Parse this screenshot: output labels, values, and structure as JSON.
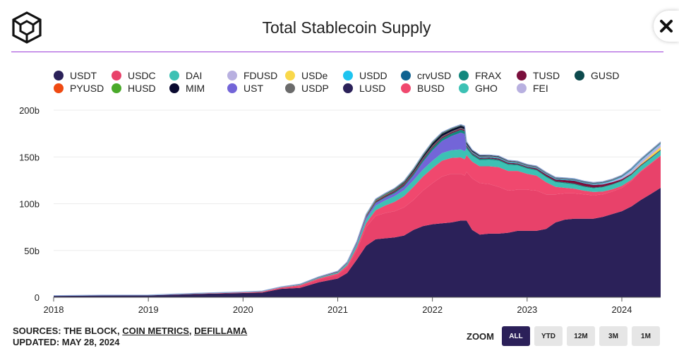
{
  "header": {
    "title": "Total Stablecoin Supply"
  },
  "icons": {
    "logo": "the-block-cube-logo-icon",
    "close": "close-icon"
  },
  "legend": [
    {
      "name": "USDT",
      "color": "#2b2159"
    },
    {
      "name": "USDC",
      "color": "#e8426a"
    },
    {
      "name": "DAI",
      "color": "#3cc1b4"
    },
    {
      "name": "FDUSD",
      "color": "#b8b0e0"
    },
    {
      "name": "USDe",
      "color": "#f9d84a"
    },
    {
      "name": "USDD",
      "color": "#1ec4f0"
    },
    {
      "name": "crvUSD",
      "color": "#0f6291"
    },
    {
      "name": "FRAX",
      "color": "#13887e"
    },
    {
      "name": "TUSD",
      "color": "#7a0f3c"
    },
    {
      "name": "GUSD",
      "color": "#0d4a4d"
    },
    {
      "name": "PYUSD",
      "color": "#ef4a12"
    },
    {
      "name": "HUSD",
      "color": "#4aaa2a"
    },
    {
      "name": "MIM",
      "color": "#0a0a30"
    },
    {
      "name": "UST",
      "color": "#7365d8"
    },
    {
      "name": "USDP",
      "color": "#6b6b6b"
    },
    {
      "name": "LUSD",
      "color": "#2b2159"
    },
    {
      "name": "BUSD",
      "color": "#f0486e"
    },
    {
      "name": "GHO",
      "color": "#3cc1b4"
    },
    {
      "name": "FEI",
      "color": "#b8b0e0"
    }
  ],
  "chart_data": {
    "type": "area",
    "stacked": true,
    "title": "Total Stablecoin Supply",
    "ylabel": "",
    "xlabel": "",
    "ylim": [
      0,
      200
    ],
    "xlim": [
      2018.0,
      2024.41
    ],
    "grid": true,
    "y_ticks": [
      "0",
      "50b",
      "100b",
      "150b",
      "200b"
    ],
    "y_tick_values": [
      0,
      50,
      100,
      150,
      200
    ],
    "x_ticks": [
      "2018",
      "2019",
      "2020",
      "2021",
      "2022",
      "2023",
      "2024"
    ],
    "x_tick_values": [
      2018,
      2019,
      2020,
      2021,
      2022,
      2023,
      2024
    ],
    "x": [
      2018.0,
      2018.5,
      2019.0,
      2019.5,
      2020.0,
      2020.2,
      2020.4,
      2020.6,
      2020.8,
      2021.0,
      2021.1,
      2021.2,
      2021.3,
      2021.4,
      2021.5,
      2021.6,
      2021.7,
      2021.8,
      2021.9,
      2022.0,
      2022.1,
      2022.2,
      2022.3,
      2022.34,
      2022.36,
      2022.42,
      2022.5,
      2022.6,
      2022.7,
      2022.8,
      2022.9,
      2023.0,
      2023.1,
      2023.2,
      2023.3,
      2023.4,
      2023.5,
      2023.6,
      2023.7,
      2023.8,
      2023.9,
      2024.0,
      2024.1,
      2024.2,
      2024.3,
      2024.41
    ],
    "series": [
      {
        "name": "USDT",
        "values": [
          1.5,
          2.0,
          2.0,
          3.5,
          4.5,
          5.0,
          9.0,
          10.0,
          16.0,
          20.0,
          26.0,
          40.0,
          55.0,
          62.0,
          63.0,
          64.0,
          66.0,
          72.0,
          76.0,
          78.0,
          79.0,
          80.0,
          82.0,
          82.0,
          82.0,
          72.0,
          67.0,
          68.0,
          68.0,
          69.0,
          71.0,
          71.0,
          71.0,
          73.0,
          80.0,
          83.0,
          84.0,
          84.0,
          84.0,
          86.0,
          89.0,
          92.0,
          97.0,
          104.0,
          110.0,
          117.0
        ]
      },
      {
        "name": "USDC",
        "values": [
          0.0,
          0.0,
          0.0,
          0.3,
          0.5,
          0.7,
          1.0,
          2.0,
          3.0,
          4.0,
          6.0,
          10.0,
          20.0,
          25.0,
          27.0,
          28.0,
          30.0,
          32.0,
          38.0,
          44.0,
          50.0,
          52.0,
          50.0,
          48.0,
          52.0,
          55.0,
          55.0,
          53.0,
          50.0,
          45.0,
          44.0,
          44.0,
          43.0,
          37.0,
          30.0,
          28.0,
          27.0,
          26.0,
          25.0,
          24.0,
          24.0,
          25.0,
          27.0,
          30.0,
          32.0,
          34.0
        ]
      },
      {
        "name": "BUSD",
        "values": [
          0.0,
          0.0,
          0.0,
          0.0,
          0.2,
          0.3,
          0.5,
          0.8,
          1.2,
          1.5,
          2.0,
          3.0,
          4.0,
          6.0,
          8.0,
          10.0,
          12.0,
          14.0,
          15.0,
          16.0,
          17.0,
          17.0,
          17.5,
          17.5,
          18.0,
          18.0,
          18.0,
          19.0,
          21.0,
          21.0,
          20.0,
          17.0,
          16.0,
          13.0,
          8.0,
          6.0,
          5.0,
          4.0,
          3.5,
          3.0,
          2.5,
          2.0,
          1.5,
          1.0,
          0.8,
          0.6
        ]
      },
      {
        "name": "DAI",
        "values": [
          0.1,
          0.2,
          0.2,
          0.3,
          0.3,
          0.3,
          0.3,
          0.6,
          0.9,
          1.2,
          2.0,
          3.0,
          4.0,
          5.0,
          5.5,
          6.0,
          6.5,
          7.0,
          7.5,
          8.0,
          8.0,
          8.2,
          8.5,
          8.5,
          7.0,
          6.5,
          6.5,
          7.0,
          7.0,
          6.5,
          6.0,
          5.5,
          5.5,
          5.5,
          5.0,
          4.8,
          4.5,
          4.0,
          4.0,
          4.5,
          4.8,
          5.0,
          5.0,
          5.0,
          5.0,
          5.0
        ]
      },
      {
        "name": "UST",
        "values": [
          0,
          0,
          0,
          0,
          0,
          0,
          0,
          0,
          0,
          0.1,
          0.3,
          1.0,
          2.0,
          2.5,
          2.7,
          3.0,
          3.5,
          5.0,
          8.0,
          11.0,
          13.0,
          15.0,
          18.0,
          18.5,
          0,
          0,
          0,
          0,
          0,
          0,
          0,
          0,
          0,
          0,
          0,
          0,
          0,
          0,
          0,
          0,
          0,
          0,
          0,
          0,
          0,
          0
        ]
      },
      {
        "name": "FRAX",
        "values": [
          0,
          0,
          0,
          0,
          0,
          0,
          0,
          0,
          0,
          0,
          0.1,
          0.3,
          0.5,
          0.8,
          1.0,
          1.2,
          1.4,
          1.8,
          2.2,
          2.7,
          2.8,
          2.9,
          3.0,
          3.0,
          2.2,
          1.6,
          1.4,
          1.3,
          1.2,
          1.1,
          1.1,
          1.1,
          1.0,
          1.0,
          1.0,
          1.0,
          1.0,
          0.9,
          0.8,
          0.7,
          0.7,
          0.7,
          0.7,
          0.7,
          0.7,
          0.7
        ]
      },
      {
        "name": "TUSD",
        "values": [
          0.1,
          0.1,
          0.2,
          0.2,
          0.2,
          0.3,
          0.3,
          0.4,
          0.4,
          0.5,
          0.5,
          0.8,
          1.0,
          1.2,
          1.3,
          1.3,
          1.4,
          1.3,
          1.3,
          1.3,
          1.2,
          1.2,
          1.2,
          1.2,
          1.2,
          1.1,
          1.1,
          1.1,
          1.2,
          1.2,
          1.0,
          1.0,
          1.3,
          1.8,
          2.0,
          2.5,
          3.0,
          3.0,
          2.8,
          2.5,
          2.0,
          1.5,
          1.0,
          0.8,
          0.6,
          0.5
        ]
      },
      {
        "name": "USDe",
        "values": [
          0,
          0,
          0,
          0,
          0,
          0,
          0,
          0,
          0,
          0,
          0,
          0,
          0,
          0,
          0,
          0,
          0,
          0,
          0,
          0,
          0,
          0,
          0,
          0,
          0,
          0,
          0,
          0,
          0,
          0,
          0,
          0,
          0,
          0,
          0,
          0,
          0,
          0,
          0,
          0,
          0,
          0,
          0.3,
          1.0,
          2.0,
          2.8
        ]
      },
      {
        "name": "FDUSD",
        "values": [
          0,
          0,
          0,
          0,
          0,
          0,
          0,
          0,
          0,
          0,
          0,
          0,
          0,
          0,
          0,
          0,
          0,
          0,
          0,
          0,
          0,
          0,
          0,
          0,
          0,
          0,
          0,
          0,
          0,
          0,
          0,
          0,
          0,
          0,
          0,
          0,
          0,
          0,
          0.2,
          0.5,
          1.0,
          2.0,
          3.0,
          3.0,
          3.0,
          3.0
        ]
      },
      {
        "name": "USDD",
        "values": [
          0,
          0,
          0,
          0,
          0,
          0,
          0,
          0,
          0,
          0,
          0,
          0,
          0,
          0,
          0,
          0,
          0,
          0,
          0,
          0,
          0,
          0,
          0,
          0,
          0.4,
          0.6,
          0.7,
          0.7,
          0.7,
          0.7,
          0.7,
          0.7,
          0.7,
          0.7,
          0.7,
          0.7,
          0.7,
          0.7,
          0.7,
          0.7,
          0.7,
          0.7,
          0.7,
          0.7,
          0.7,
          0.7
        ]
      },
      {
        "name": "USDP",
        "values": [
          0,
          0,
          0,
          0,
          0,
          0,
          0,
          0,
          0.1,
          0.2,
          0.3,
          0.4,
          0.5,
          0.6,
          0.6,
          0.7,
          0.8,
          0.9,
          0.9,
          1.0,
          1.0,
          1.0,
          1.0,
          1.0,
          1.0,
          1.0,
          1.0,
          1.0,
          1.0,
          1.0,
          0.9,
          0.9,
          0.9,
          0.8,
          0.7,
          0.6,
          0.5,
          0.5,
          0.5,
          0.5,
          0.4,
          0.4,
          0.4,
          0.4,
          0.4,
          0.4
        ]
      },
      {
        "name": "MIM",
        "values": [
          0,
          0,
          0,
          0,
          0,
          0,
          0,
          0,
          0,
          0,
          0,
          0,
          0,
          0,
          0.1,
          0.3,
          0.8,
          1.5,
          2.0,
          2.5,
          2.5,
          2.2,
          2.0,
          2.0,
          1.5,
          1.0,
          0.8,
          0.5,
          0.5,
          0.4,
          0.3,
          0.3,
          0.3,
          0.3,
          0.2,
          0.2,
          0.2,
          0.2,
          0.2,
          0.2,
          0.2,
          0.2,
          0.2,
          0.2,
          0.2,
          0.2
        ]
      },
      {
        "name": "crvUSD",
        "values": [
          0,
          0,
          0,
          0,
          0,
          0,
          0,
          0,
          0,
          0,
          0,
          0,
          0,
          0,
          0,
          0,
          0,
          0,
          0,
          0,
          0,
          0,
          0,
          0,
          0,
          0,
          0,
          0,
          0,
          0,
          0,
          0,
          0,
          0,
          0.1,
          0.2,
          0.3,
          0.3,
          0.3,
          0.3,
          0.3,
          0.3,
          0.3,
          0.3,
          0.3,
          0.3
        ]
      },
      {
        "name": "GUSD",
        "values": [
          0,
          0,
          0,
          0,
          0,
          0.05,
          0.1,
          0.1,
          0.1,
          0.1,
          0.2,
          0.3,
          0.3,
          0.3,
          0.3,
          0.3,
          0.3,
          0.3,
          0.3,
          0.3,
          0.3,
          0.3,
          0.3,
          0.3,
          0.3,
          0.3,
          0.3,
          0.3,
          0.3,
          0.3,
          0.3,
          0.3,
          0.3,
          0.3,
          0.3,
          0.3,
          0.3,
          0.3,
          0.3,
          0.3,
          0.3,
          0.3,
          0.3,
          0.3,
          0.3,
          0.3
        ]
      },
      {
        "name": "PYUSD",
        "values": [
          0,
          0,
          0,
          0,
          0,
          0,
          0,
          0,
          0,
          0,
          0,
          0,
          0,
          0,
          0,
          0,
          0,
          0,
          0,
          0,
          0,
          0,
          0,
          0,
          0,
          0,
          0,
          0,
          0,
          0,
          0,
          0,
          0,
          0,
          0,
          0,
          0,
          0.05,
          0.1,
          0.15,
          0.2,
          0.2,
          0.3,
          0.3,
          0.4,
          0.4
        ]
      },
      {
        "name": "HUSD",
        "values": [
          0,
          0,
          0,
          0,
          0,
          0,
          0,
          0.1,
          0.2,
          0.3,
          0.4,
          0.5,
          0.6,
          0.6,
          0.6,
          0.6,
          0.6,
          0.6,
          0.6,
          0.6,
          0.5,
          0.4,
          0.3,
          0.3,
          0.2,
          0.1,
          0.1,
          0,
          0,
          0,
          0,
          0,
          0,
          0,
          0,
          0,
          0,
          0,
          0,
          0,
          0,
          0,
          0,
          0,
          0,
          0
        ]
      },
      {
        "name": "LUSD",
        "values": [
          0,
          0,
          0,
          0,
          0,
          0,
          0,
          0,
          0,
          0,
          0,
          0,
          0.3,
          0.5,
          0.5,
          0.6,
          0.6,
          0.6,
          0.6,
          0.6,
          0.6,
          0.5,
          0.5,
          0.5,
          0.4,
          0.3,
          0.3,
          0.3,
          0.3,
          0.3,
          0.3,
          0.3,
          0.3,
          0.3,
          0.3,
          0.3,
          0.3,
          0.3,
          0.3,
          0.3,
          0.3,
          0.2,
          0.2,
          0.2,
          0.2,
          0.2
        ]
      },
      {
        "name": "GHO",
        "values": [
          0,
          0,
          0,
          0,
          0,
          0,
          0,
          0,
          0,
          0,
          0,
          0,
          0,
          0,
          0,
          0,
          0,
          0,
          0,
          0,
          0,
          0,
          0,
          0,
          0,
          0,
          0,
          0,
          0,
          0,
          0,
          0,
          0,
          0,
          0,
          0,
          0,
          0.03,
          0.05,
          0.05,
          0.06,
          0.06,
          0.07,
          0.08,
          0.09,
          0.09
        ]
      },
      {
        "name": "FEI",
        "values": [
          0,
          0,
          0,
          0,
          0,
          0,
          0,
          0,
          0,
          0,
          0,
          0,
          0.5,
          0.6,
          0.6,
          0.5,
          0.5,
          0.5,
          0.5,
          0.5,
          0.4,
          0.3,
          0.3,
          0.3,
          0.2,
          0.1,
          0,
          0,
          0,
          0,
          0,
          0,
          0,
          0,
          0,
          0,
          0,
          0,
          0,
          0,
          0,
          0,
          0,
          0,
          0,
          0
        ]
      }
    ]
  },
  "footer": {
    "sources_prefix": "SOURCES: THE BLOCK, ",
    "source_link_1": "COIN METRICS",
    "sep": ", ",
    "source_link_2": "DEFILLAMA",
    "updated": "UPDATED: MAY 28, 2024"
  },
  "zoom": {
    "label": "ZOOM",
    "options": [
      "ALL",
      "YTD",
      "12M",
      "3M",
      "1M"
    ],
    "active": "ALL"
  }
}
